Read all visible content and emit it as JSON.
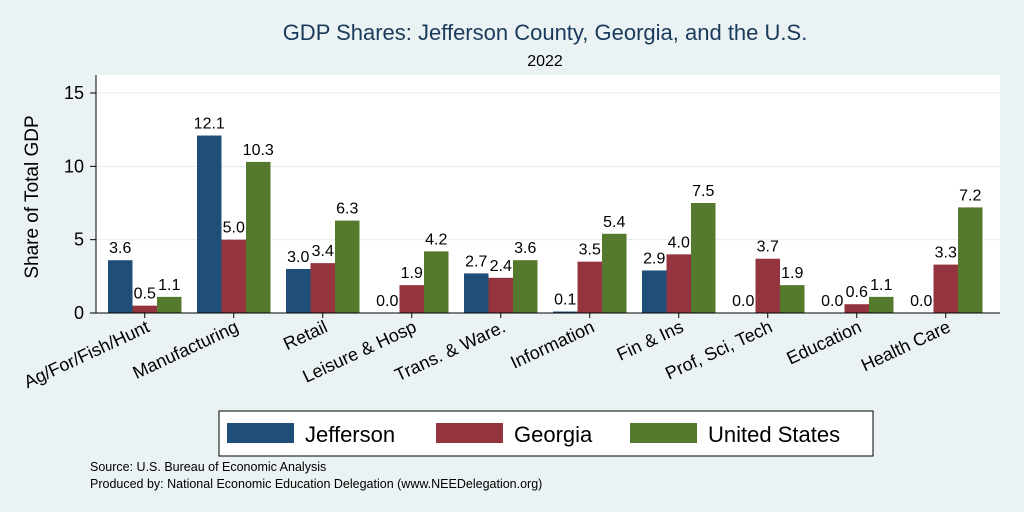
{
  "chart_data": {
    "type": "bar",
    "title": "GDP Shares: Jefferson County, Georgia, and the U.S.",
    "subtitle": "2022",
    "ylabel": "Share of Total GDP",
    "xlabel": "",
    "ylim": [
      0,
      16
    ],
    "yticks": [
      0,
      5,
      10,
      15
    ],
    "grid": true,
    "legend_position": "bottom",
    "categories": [
      "Ag/For/Fish/Hunt",
      "Manufacturing",
      "Retail",
      "Leisure & Hosp",
      "Trans. & Ware.",
      "Information",
      "Fin & Ins",
      "Prof, Sci, Tech",
      "Education",
      "Health Care"
    ],
    "series": [
      {
        "name": "Jefferson",
        "color": "#1f4e79",
        "values": [
          3.6,
          12.1,
          3.0,
          0.0,
          2.7,
          0.1,
          2.9,
          0.0,
          0.0,
          0.0
        ]
      },
      {
        "name": "Georgia",
        "color": "#93343f",
        "values": [
          0.5,
          5.0,
          3.4,
          1.9,
          2.4,
          3.5,
          4.0,
          3.7,
          0.6,
          3.3
        ]
      },
      {
        "name": "United States",
        "color": "#557a2e",
        "values": [
          1.1,
          10.3,
          6.3,
          4.2,
          3.6,
          5.4,
          7.5,
          1.9,
          1.1,
          7.2
        ]
      }
    ]
  },
  "footer": {
    "source": "Source: U.S. Bureau of Economic Analysis",
    "produced_by": "Produced by: National Economic Education Delegation (www.NEEDelegation.org)"
  }
}
